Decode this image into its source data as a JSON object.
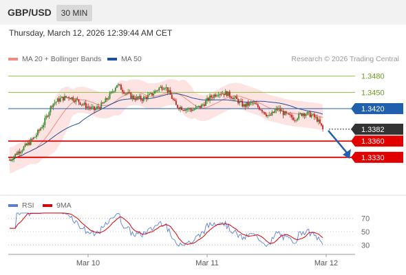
{
  "header": {
    "pair": "GBP/USD",
    "timeframe": "30 MIN"
  },
  "timestamp": "Thursday, March 12, 2026 12:39:44 AM CET",
  "legend": {
    "ma20": {
      "label": "MA 20 + Bollinger Bands",
      "color": "#f28b82"
    },
    "ma50": {
      "label": "MA 50",
      "color": "#1f4e9c"
    }
  },
  "credit": "Research © 2026 Trading Central",
  "rsi_legend": {
    "rsi": {
      "label": "RSI",
      "color": "#5b7fd6"
    },
    "ma9": {
      "label": "9MA",
      "color": "#dd0000"
    }
  },
  "chart_data": {
    "type": "candlestick",
    "yrange": [
      1.3265,
      1.35
    ],
    "x_ticks": [
      "Mar 10",
      "Mar 11",
      "Mar 12"
    ],
    "levels": [
      {
        "value": 1.348,
        "label": "1.3480",
        "kind": "resistance",
        "color": "#8fbf3f"
      },
      {
        "value": 1.345,
        "label": "1.3450",
        "kind": "resistance",
        "color": "#8fbf3f"
      },
      {
        "value": 1.342,
        "label": "1.3420",
        "kind": "pivot",
        "color": "#1f5fae"
      },
      {
        "value": 1.3382,
        "label": "1.3382",
        "kind": "last",
        "color": "#333333"
      },
      {
        "value": 1.336,
        "label": "1.3360",
        "kind": "support",
        "color": "#e00000"
      },
      {
        "value": 1.333,
        "label": "1.3330",
        "kind": "support",
        "color": "#e00000"
      }
    ],
    "price_path": [
      [
        0,
        1.3325
      ],
      [
        6,
        1.334
      ],
      [
        12,
        1.3352
      ],
      [
        18,
        1.3368
      ],
      [
        24,
        1.3392
      ],
      [
        30,
        1.3428
      ],
      [
        36,
        1.3438
      ],
      [
        42,
        1.3442
      ],
      [
        48,
        1.3435
      ],
      [
        54,
        1.3425
      ],
      [
        60,
        1.3418
      ],
      [
        66,
        1.3428
      ],
      [
        72,
        1.3448
      ],
      [
        76,
        1.3465
      ],
      [
        82,
        1.345
      ],
      [
        88,
        1.344
      ],
      [
        94,
        1.3438
      ],
      [
        100,
        1.3445
      ],
      [
        106,
        1.3458
      ],
      [
        110,
        1.3462
      ],
      [
        114,
        1.3445
      ],
      [
        118,
        1.3425
      ],
      [
        124,
        1.342
      ],
      [
        130,
        1.3418
      ],
      [
        136,
        1.3425
      ],
      [
        142,
        1.344
      ],
      [
        148,
        1.345
      ],
      [
        154,
        1.3448
      ],
      [
        160,
        1.3438
      ],
      [
        166,
        1.3425
      ],
      [
        172,
        1.343
      ],
      [
        178,
        1.342
      ],
      [
        184,
        1.3405
      ],
      [
        190,
        1.342
      ],
      [
        196,
        1.3408
      ],
      [
        202,
        1.3402
      ],
      [
        208,
        1.3412
      ],
      [
        214,
        1.3408
      ],
      [
        218,
        1.34
      ],
      [
        222,
        1.3382
      ]
    ],
    "forecast": {
      "from": 1.3382,
      "to": 1.333
    },
    "rsi": {
      "levels": [
        70,
        50,
        30
      ],
      "yrange": [
        20,
        80
      ]
    }
  }
}
